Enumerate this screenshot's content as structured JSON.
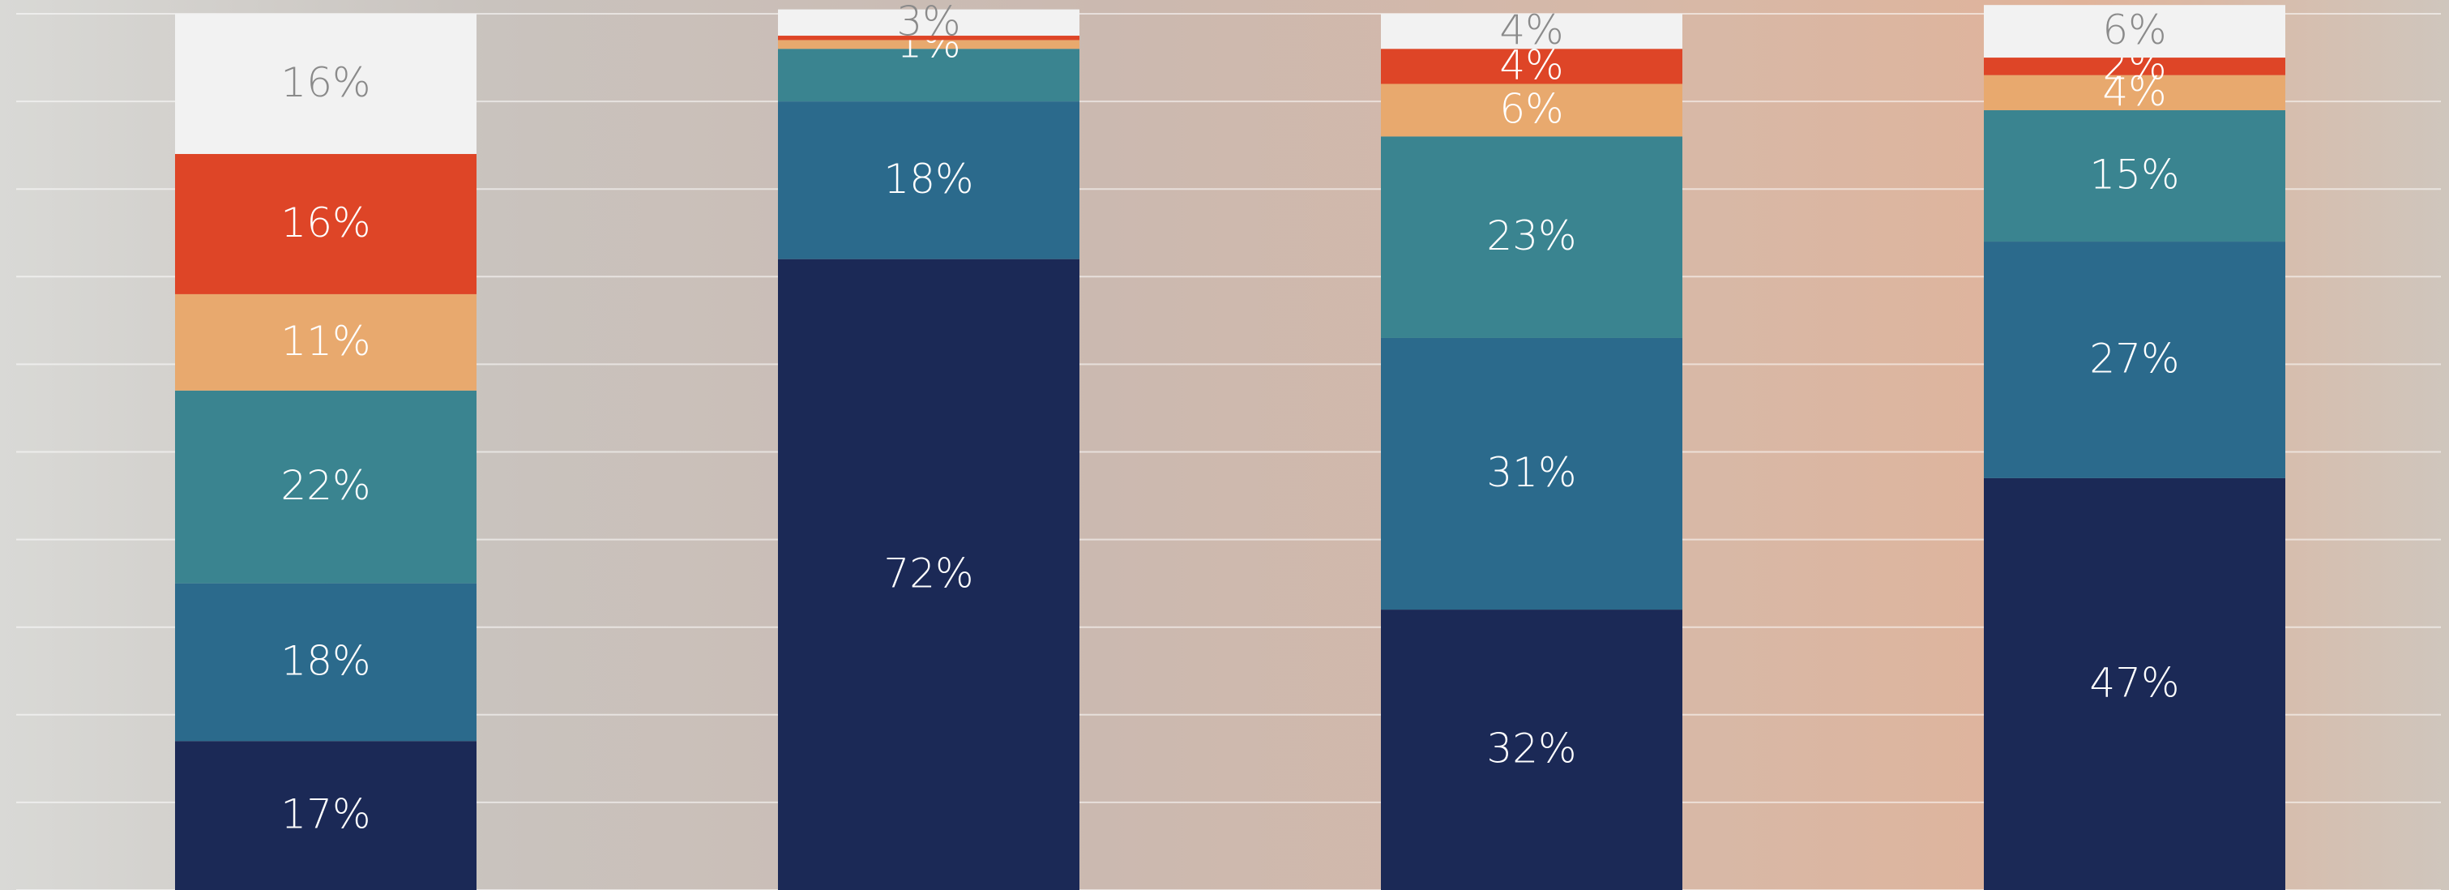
{
  "chart_data": {
    "type": "stacked_bar",
    "categories": [
      null,
      null,
      null,
      null
    ],
    "ylim": [
      0,
      100
    ],
    "yticks": [
      0,
      10,
      20,
      30,
      40,
      50,
      60,
      70,
      80,
      90,
      100
    ],
    "grid": true,
    "series": [
      {
        "color": "#1b2956",
        "values": [
          17,
          72,
          32,
          47
        ],
        "value_labels": [
          "17%",
          "72%",
          "32%",
          "47%"
        ]
      },
      {
        "color": "#2b6a8c",
        "values": [
          18,
          18,
          31,
          27
        ],
        "value_labels": [
          "18%",
          "18%",
          "31%",
          "27%"
        ]
      },
      {
        "color": "#3a8490",
        "values": [
          22,
          6,
          23,
          15
        ],
        "value_labels": [
          "22%",
          null,
          "23%",
          "15%"
        ]
      },
      {
        "color": "#e8a96e",
        "values": [
          11,
          1,
          6,
          4
        ],
        "value_labels": [
          "11%",
          "1%",
          "6%",
          "4%"
        ]
      },
      {
        "color": "#de4527",
        "values": [
          16,
          0.5,
          4,
          2
        ],
        "value_labels": [
          "16%",
          null,
          "4%",
          "2%"
        ]
      },
      {
        "color": "#f2f2f2",
        "values": [
          16,
          3,
          4,
          6
        ],
        "value_labels": [
          "16%",
          "3%",
          "4%",
          "6%"
        ]
      }
    ]
  }
}
